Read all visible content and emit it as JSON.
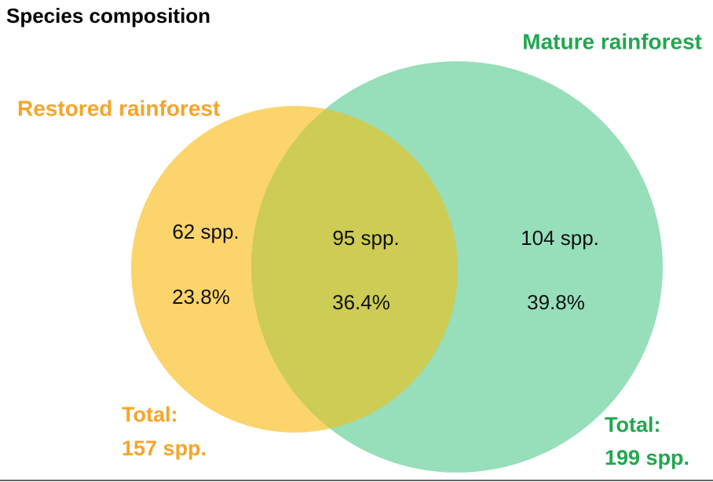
{
  "title": "Species composition",
  "sets": [
    {
      "label": "Restored rainforest",
      "total_heading": "Total:",
      "total": "157 spp."
    },
    {
      "label": "Mature rainforest",
      "total_heading": "Total:",
      "total": "199 spp."
    }
  ],
  "regions": [
    {
      "count": "62 spp.",
      "percent": "23.8%"
    },
    {
      "count": "95 spp.",
      "percent": "36.4%"
    },
    {
      "count": "104 spp.",
      "percent": "39.8%"
    }
  ]
}
